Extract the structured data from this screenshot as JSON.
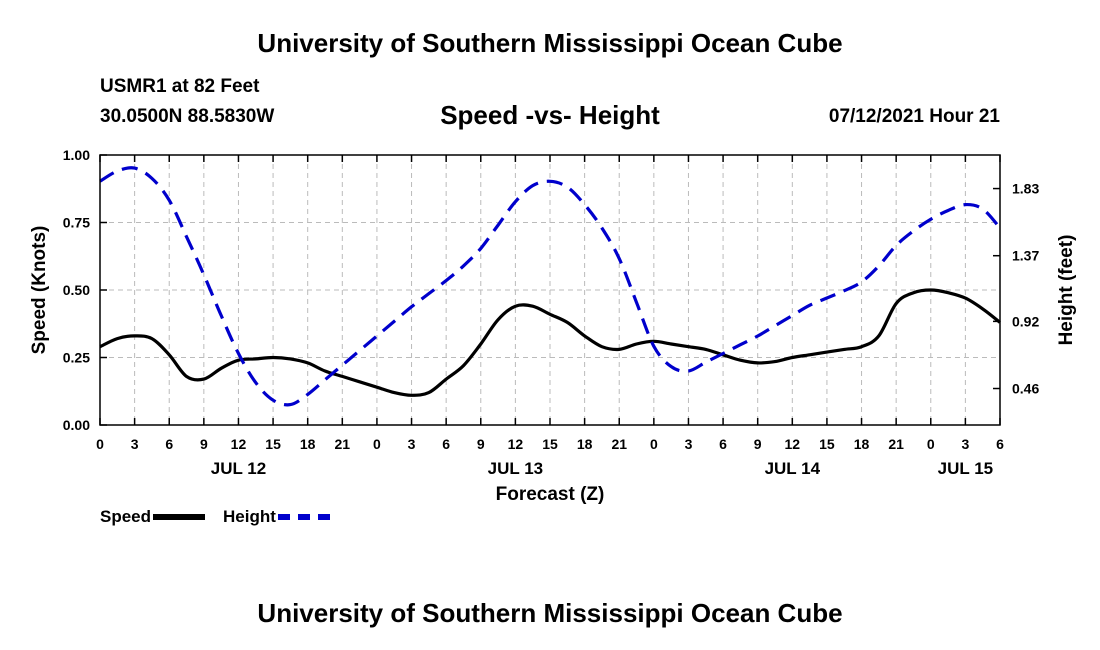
{
  "header": {
    "title": "University of Southern Mississippi Ocean Cube",
    "station": "USMR1 at 82 Feet",
    "coordinates": "30.0500N  88.5830W",
    "chart_title": "Speed -vs- Height",
    "date": "07/12/2021 Hour 21"
  },
  "footer": {
    "title": "University of Southern Mississippi Ocean Cube"
  },
  "legend": {
    "speed_label": "Speed",
    "height_label": "Height"
  },
  "colors": {
    "speed": "#000000",
    "height": "#0000cc",
    "grid": "#bbbbbb"
  },
  "chart_data": {
    "type": "line",
    "title": "Speed -vs- Height",
    "xlabel": "Forecast (Z)",
    "ylabel": "Speed (Knots)",
    "y2label": "Height (feet)",
    "x_range_hours": [
      0,
      78
    ],
    "ylim": [
      0,
      1
    ],
    "y2lim": [
      0.21,
      2.06
    ],
    "x_ticks": [
      {
        "h": 0,
        "label": "0"
      },
      {
        "h": 3,
        "label": "3"
      },
      {
        "h": 6,
        "label": "6"
      },
      {
        "h": 9,
        "label": "9"
      },
      {
        "h": 12,
        "label": "12"
      },
      {
        "h": 15,
        "label": "15"
      },
      {
        "h": 18,
        "label": "18"
      },
      {
        "h": 21,
        "label": "21"
      },
      {
        "h": 24,
        "label": "0"
      },
      {
        "h": 27,
        "label": "3"
      },
      {
        "h": 30,
        "label": "6"
      },
      {
        "h": 33,
        "label": "9"
      },
      {
        "h": 36,
        "label": "12"
      },
      {
        "h": 39,
        "label": "15"
      },
      {
        "h": 42,
        "label": "18"
      },
      {
        "h": 45,
        "label": "21"
      },
      {
        "h": 48,
        "label": "0"
      },
      {
        "h": 51,
        "label": "3"
      },
      {
        "h": 54,
        "label": "6"
      },
      {
        "h": 57,
        "label": "9"
      },
      {
        "h": 60,
        "label": "12"
      },
      {
        "h": 63,
        "label": "15"
      },
      {
        "h": 66,
        "label": "18"
      },
      {
        "h": 69,
        "label": "21"
      },
      {
        "h": 72,
        "label": "0"
      },
      {
        "h": 75,
        "label": "3"
      },
      {
        "h": 78,
        "label": "6"
      }
    ],
    "date_labels": [
      {
        "h": 12,
        "label": "JUL 12"
      },
      {
        "h": 36,
        "label": "JUL 13"
      },
      {
        "h": 60,
        "label": "JUL 14"
      },
      {
        "h": 75,
        "label": "JUL 15"
      }
    ],
    "y_ticks": [
      0,
      0.25,
      0.5,
      0.75,
      1.0
    ],
    "y_tick_labels": [
      "0.00",
      "0.25",
      "0.50",
      "0.75",
      "1.00"
    ],
    "y2_ticks": [
      0.46,
      0.92,
      1.37,
      1.83
    ],
    "y2_tick_labels": [
      "0.46",
      "0.92",
      "1.37",
      "1.83"
    ],
    "series": [
      {
        "name": "Speed",
        "axis": "left",
        "style": "solid",
        "x": [
          0,
          1.5,
          3,
          4.5,
          6,
          7.5,
          9,
          10.5,
          12,
          13.5,
          15,
          16.5,
          18,
          19.5,
          21,
          22.5,
          24,
          25.5,
          27,
          28.5,
          30,
          31.5,
          33,
          34.5,
          36,
          37.5,
          39,
          40.5,
          42,
          43.5,
          45,
          46.5,
          48,
          49.5,
          51,
          52.5,
          54,
          55.5,
          57,
          58.5,
          60,
          61.5,
          63,
          64.5,
          66,
          67.5,
          69,
          70.5,
          72,
          73.5,
          75,
          76.5,
          78
        ],
        "values": [
          0.29,
          0.32,
          0.33,
          0.32,
          0.26,
          0.18,
          0.17,
          0.21,
          0.24,
          0.245,
          0.25,
          0.245,
          0.23,
          0.2,
          0.18,
          0.16,
          0.14,
          0.12,
          0.11,
          0.12,
          0.17,
          0.22,
          0.3,
          0.39,
          0.44,
          0.44,
          0.41,
          0.38,
          0.33,
          0.29,
          0.28,
          0.3,
          0.31,
          0.3,
          0.29,
          0.28,
          0.26,
          0.24,
          0.23,
          0.235,
          0.25,
          0.26,
          0.27,
          0.28,
          0.29,
          0.33,
          0.45,
          0.49,
          0.5,
          0.49,
          0.47,
          0.43,
          0.38
        ]
      },
      {
        "name": "Height",
        "axis": "right",
        "style": "dashed",
        "x": [
          0,
          1.5,
          3,
          4.5,
          6,
          7.5,
          9,
          10.5,
          12,
          13.5,
          15,
          16.5,
          18,
          19.5,
          21,
          22.5,
          24,
          25.5,
          27,
          28.5,
          30,
          31.5,
          33,
          34.5,
          36,
          37.5,
          39,
          40.5,
          42,
          43.5,
          45,
          46.5,
          48,
          49.5,
          51,
          52.5,
          54,
          55.5,
          57,
          58.5,
          60,
          61.5,
          63,
          64.5,
          66,
          67.5,
          69,
          70.5,
          72,
          73.5,
          75,
          76.5,
          78
        ],
        "values": [
          1.88,
          1.95,
          1.97,
          1.9,
          1.75,
          1.5,
          1.24,
          0.96,
          0.7,
          0.5,
          0.38,
          0.35,
          0.42,
          0.52,
          0.62,
          0.72,
          0.82,
          0.92,
          1.02,
          1.11,
          1.2,
          1.3,
          1.42,
          1.58,
          1.74,
          1.85,
          1.88,
          1.84,
          1.72,
          1.56,
          1.35,
          1.05,
          0.75,
          0.61,
          0.58,
          0.64,
          0.7,
          0.76,
          0.82,
          0.89,
          0.96,
          1.03,
          1.08,
          1.13,
          1.19,
          1.3,
          1.44,
          1.54,
          1.62,
          1.68,
          1.72,
          1.69,
          1.56
        ]
      }
    ]
  },
  "axes": {
    "xlabel": "Forecast (Z)",
    "ylabel": "Speed (Knots)",
    "y2label": "Height (feet)"
  }
}
